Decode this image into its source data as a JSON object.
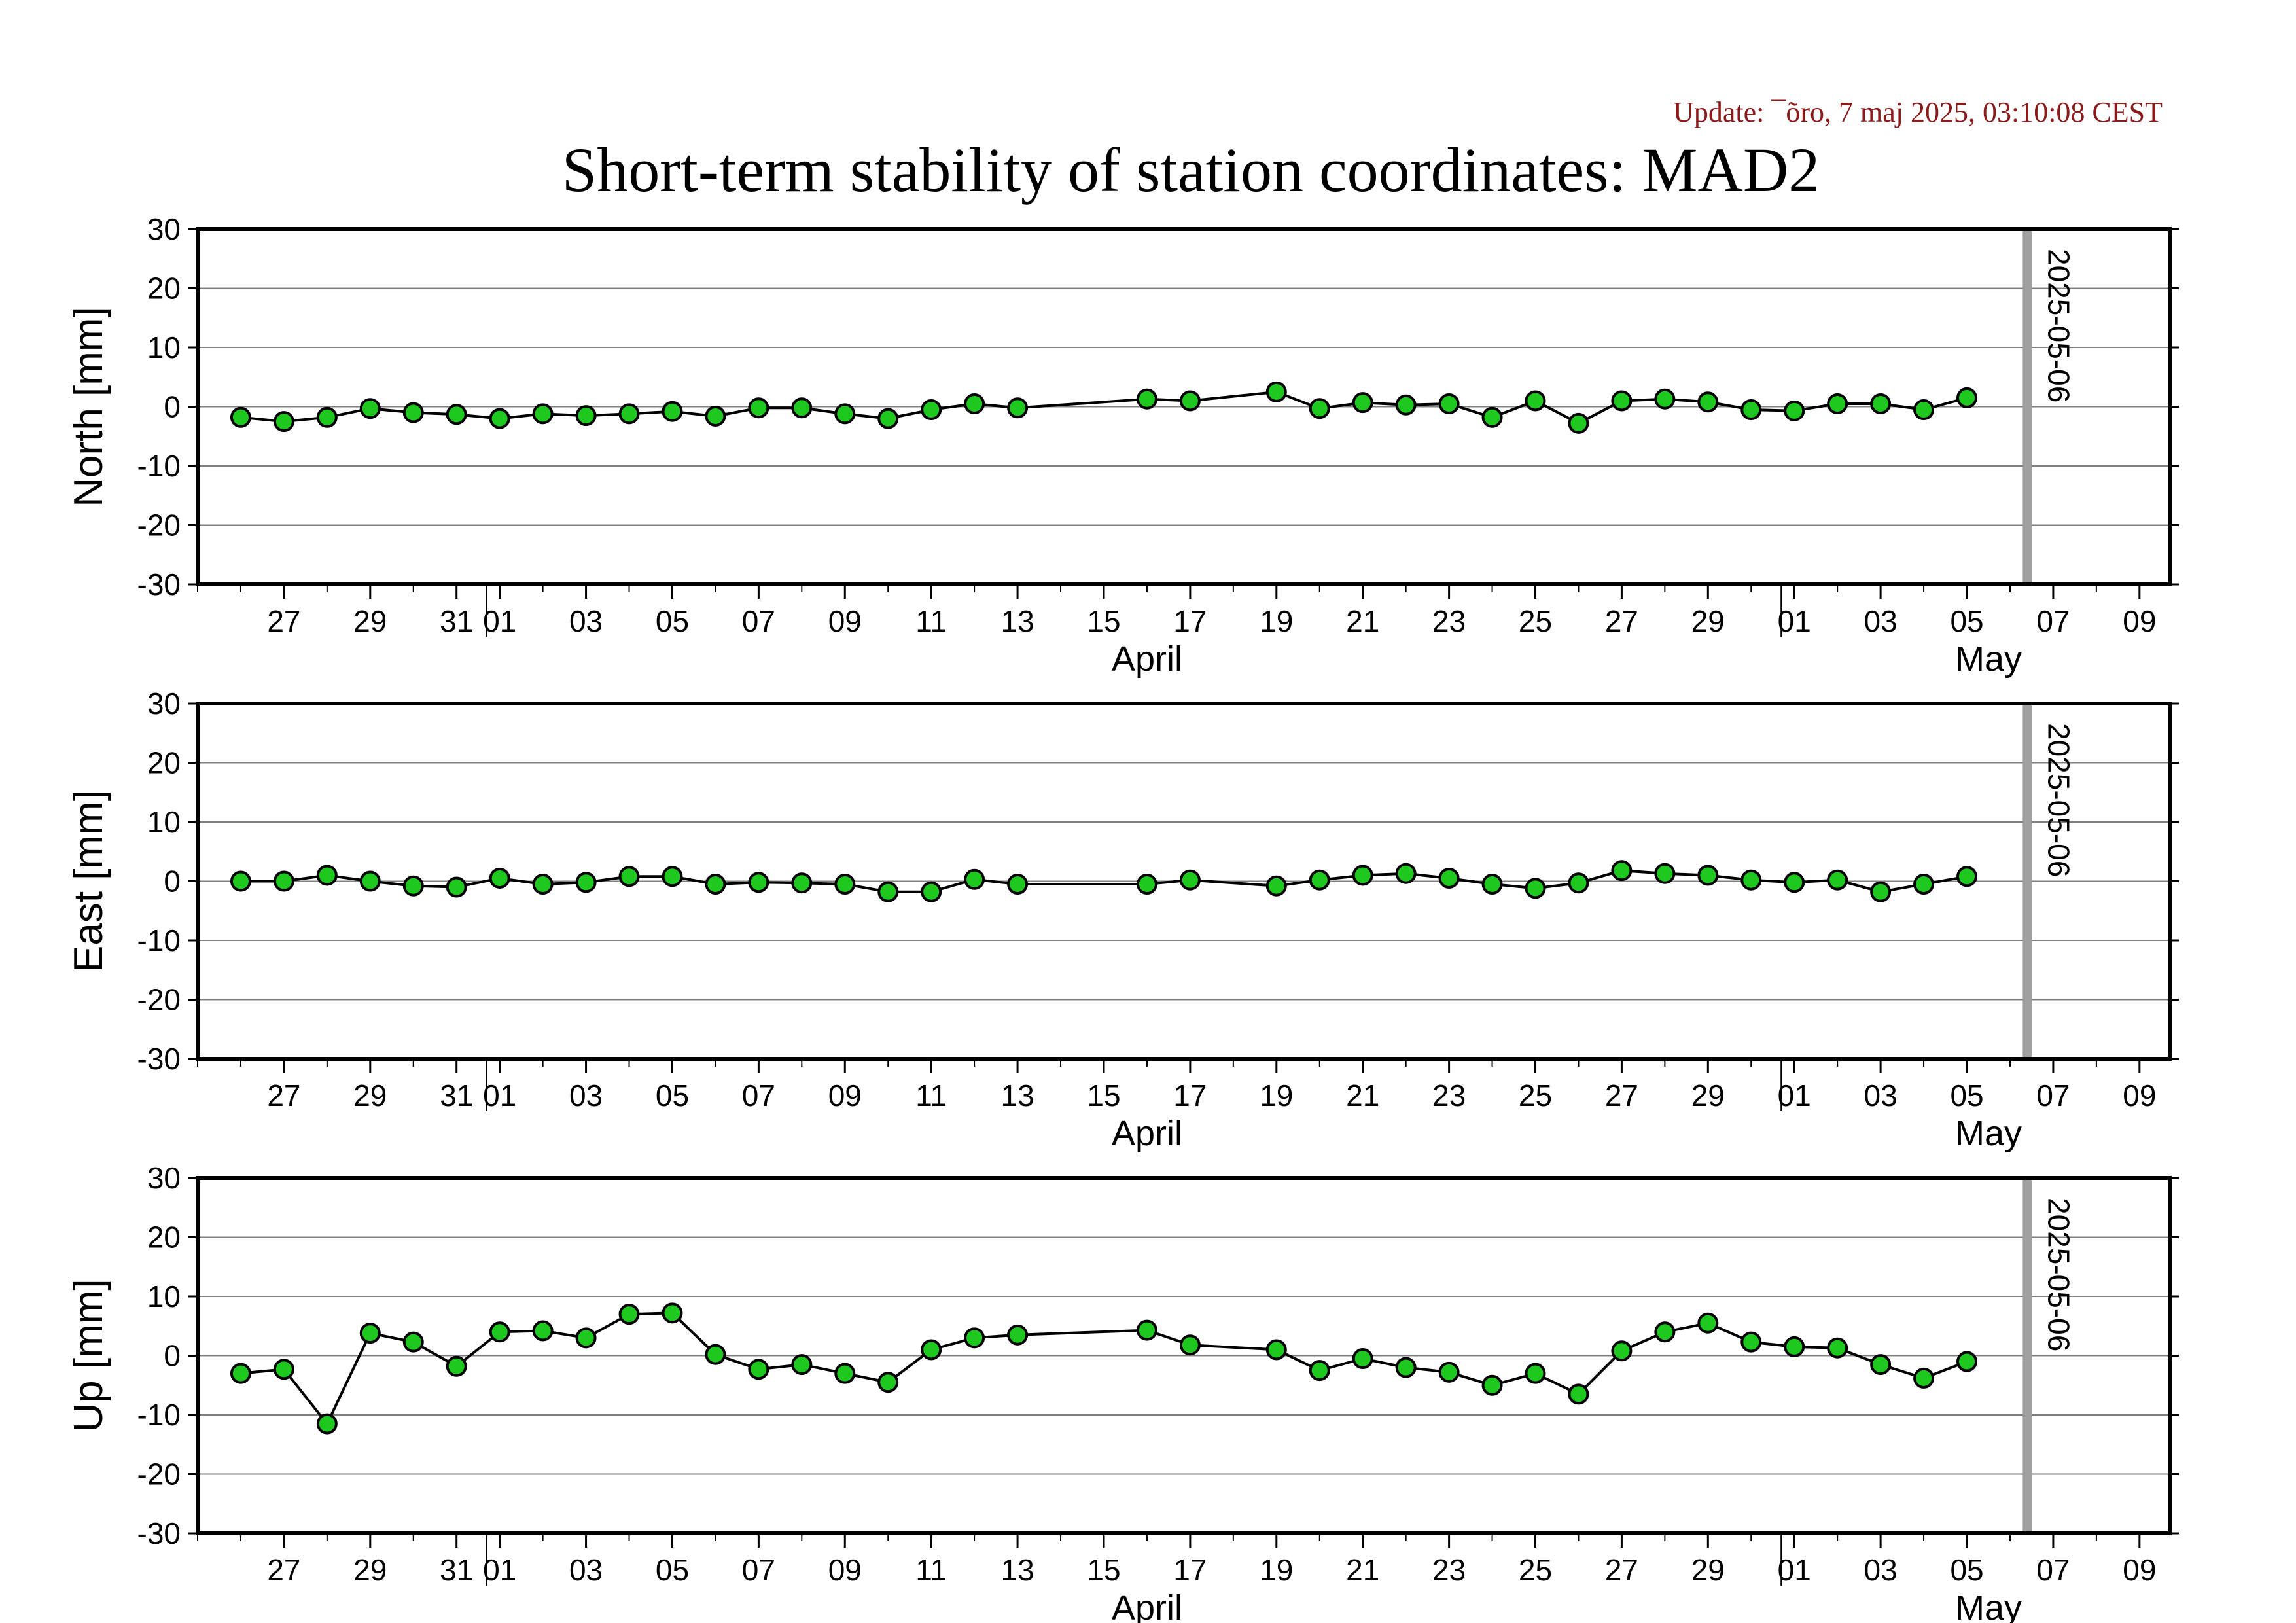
{
  "header": {
    "update": "Update: ¯õro, 7 maj 2025, 03:10:08 CEST",
    "title": "Short-term stability of station coordinates: MAD2"
  },
  "colors": {
    "marker_fill": "#1ec81e",
    "marker_edge": "#000000",
    "grid": "#808080",
    "date_marker": "#a0a0a0"
  },
  "chart_data": [
    {
      "type": "line",
      "ylabel": "North [mm]",
      "ylim": [
        -30,
        30
      ],
      "yticks": [
        30,
        20,
        10,
        0,
        -10,
        -20,
        -30
      ],
      "x_start": "2025-03-25",
      "xlim_days": [
        0,
        45.7
      ],
      "xtick_labels": [
        {
          "d": 2,
          "t": "27"
        },
        {
          "d": 4,
          "t": "29"
        },
        {
          "d": 6,
          "t": "31"
        },
        {
          "d": 7,
          "t": "01"
        },
        {
          "d": 9,
          "t": "03"
        },
        {
          "d": 11,
          "t": "05"
        },
        {
          "d": 13,
          "t": "07"
        },
        {
          "d": 15,
          "t": "09"
        },
        {
          "d": 17,
          "t": "11"
        },
        {
          "d": 19,
          "t": "13"
        },
        {
          "d": 21,
          "t": "15"
        },
        {
          "d": 23,
          "t": "17"
        },
        {
          "d": 25,
          "t": "19"
        },
        {
          "d": 27,
          "t": "21"
        },
        {
          "d": 29,
          "t": "23"
        },
        {
          "d": 31,
          "t": "25"
        },
        {
          "d": 33,
          "t": "27"
        },
        {
          "d": 35,
          "t": "29"
        },
        {
          "d": 37,
          "t": "01"
        },
        {
          "d": 39,
          "t": "03"
        },
        {
          "d": 41,
          "t": "05"
        },
        {
          "d": 43,
          "t": "07"
        },
        {
          "d": 45,
          "t": "09"
        }
      ],
      "months": [
        {
          "d": 22,
          "t": "April"
        },
        {
          "d": 41.5,
          "t": "May"
        }
      ],
      "month_bounds": [
        7,
        37
      ],
      "date_marker": {
        "d": 42.4,
        "label": "2025-05-06"
      },
      "points": [
        [
          1,
          -1.8
        ],
        [
          2,
          -2.5
        ],
        [
          3,
          -1.8
        ],
        [
          4,
          -0.3
        ],
        [
          5,
          -1.0
        ],
        [
          6,
          -1.3
        ],
        [
          7,
          -2.0
        ],
        [
          8,
          -1.2
        ],
        [
          9,
          -1.5
        ],
        [
          10,
          -1.2
        ],
        [
          11,
          -0.8
        ],
        [
          12,
          -1.6
        ],
        [
          13,
          -0.2
        ],
        [
          14,
          -0.2
        ],
        [
          15,
          -1.2
        ],
        [
          16,
          -2.0
        ],
        [
          17,
          -0.5
        ],
        [
          18,
          0.5
        ],
        [
          19,
          -0.2
        ],
        [
          22,
          1.3
        ],
        [
          23,
          1.0
        ],
        [
          25,
          2.5
        ],
        [
          26,
          -0.3
        ],
        [
          27,
          0.7
        ],
        [
          28,
          0.3
        ],
        [
          29,
          0.5
        ],
        [
          30,
          -1.8
        ],
        [
          31,
          1.0
        ],
        [
          32,
          -2.8
        ],
        [
          33,
          1.0
        ],
        [
          34,
          1.3
        ],
        [
          35,
          0.8
        ],
        [
          36,
          -0.5
        ],
        [
          37,
          -0.7
        ],
        [
          38,
          0.5
        ],
        [
          39,
          0.5
        ],
        [
          40,
          -0.5
        ],
        [
          41,
          1.5
        ]
      ]
    },
    {
      "type": "line",
      "ylabel": "East [mm]",
      "ylim": [
        -30,
        30
      ],
      "yticks": [
        30,
        20,
        10,
        0,
        -10,
        -20,
        -30
      ],
      "x_start": "2025-03-25",
      "xlim_days": [
        0,
        45.7
      ],
      "xtick_labels": [
        {
          "d": 2,
          "t": "27"
        },
        {
          "d": 4,
          "t": "29"
        },
        {
          "d": 6,
          "t": "31"
        },
        {
          "d": 7,
          "t": "01"
        },
        {
          "d": 9,
          "t": "03"
        },
        {
          "d": 11,
          "t": "05"
        },
        {
          "d": 13,
          "t": "07"
        },
        {
          "d": 15,
          "t": "09"
        },
        {
          "d": 17,
          "t": "11"
        },
        {
          "d": 19,
          "t": "13"
        },
        {
          "d": 21,
          "t": "15"
        },
        {
          "d": 23,
          "t": "17"
        },
        {
          "d": 25,
          "t": "19"
        },
        {
          "d": 27,
          "t": "21"
        },
        {
          "d": 29,
          "t": "23"
        },
        {
          "d": 31,
          "t": "25"
        },
        {
          "d": 33,
          "t": "27"
        },
        {
          "d": 35,
          "t": "29"
        },
        {
          "d": 37,
          "t": "01"
        },
        {
          "d": 39,
          "t": "03"
        },
        {
          "d": 41,
          "t": "05"
        },
        {
          "d": 43,
          "t": "07"
        },
        {
          "d": 45,
          "t": "09"
        }
      ],
      "months": [
        {
          "d": 22,
          "t": "April"
        },
        {
          "d": 41.5,
          "t": "May"
        }
      ],
      "month_bounds": [
        7,
        37
      ],
      "date_marker": {
        "d": 42.4,
        "label": "2025-05-06"
      },
      "points": [
        [
          1,
          0.0
        ],
        [
          2,
          0.0
        ],
        [
          3,
          1.0
        ],
        [
          4,
          0.0
        ],
        [
          5,
          -0.8
        ],
        [
          6,
          -1.0
        ],
        [
          7,
          0.5
        ],
        [
          8,
          -0.5
        ],
        [
          9,
          -0.2
        ],
        [
          10,
          0.8
        ],
        [
          11,
          0.8
        ],
        [
          12,
          -0.5
        ],
        [
          13,
          -0.2
        ],
        [
          14,
          -0.3
        ],
        [
          15,
          -0.5
        ],
        [
          16,
          -1.8
        ],
        [
          17,
          -1.8
        ],
        [
          18,
          0.3
        ],
        [
          19,
          -0.5
        ],
        [
          22,
          -0.5
        ],
        [
          23,
          0.2
        ],
        [
          25,
          -0.8
        ],
        [
          26,
          0.2
        ],
        [
          27,
          1.0
        ],
        [
          28,
          1.3
        ],
        [
          29,
          0.5
        ],
        [
          30,
          -0.5
        ],
        [
          31,
          -1.2
        ],
        [
          32,
          -0.3
        ],
        [
          33,
          1.8
        ],
        [
          34,
          1.3
        ],
        [
          35,
          1.0
        ],
        [
          36,
          0.2
        ],
        [
          37,
          -0.2
        ],
        [
          38,
          0.2
        ],
        [
          39,
          -1.8
        ],
        [
          40,
          -0.5
        ],
        [
          41,
          0.8
        ]
      ]
    },
    {
      "type": "line",
      "ylabel": "Up [mm]",
      "ylim": [
        -30,
        30
      ],
      "yticks": [
        30,
        20,
        10,
        0,
        -10,
        -20,
        -30
      ],
      "x_start": "2025-03-25",
      "xlim_days": [
        0,
        45.7
      ],
      "xtick_labels": [
        {
          "d": 2,
          "t": "27"
        },
        {
          "d": 4,
          "t": "29"
        },
        {
          "d": 6,
          "t": "31"
        },
        {
          "d": 7,
          "t": "01"
        },
        {
          "d": 9,
          "t": "03"
        },
        {
          "d": 11,
          "t": "05"
        },
        {
          "d": 13,
          "t": "07"
        },
        {
          "d": 15,
          "t": "09"
        },
        {
          "d": 17,
          "t": "11"
        },
        {
          "d": 19,
          "t": "13"
        },
        {
          "d": 21,
          "t": "15"
        },
        {
          "d": 23,
          "t": "17"
        },
        {
          "d": 25,
          "t": "19"
        },
        {
          "d": 27,
          "t": "21"
        },
        {
          "d": 29,
          "t": "23"
        },
        {
          "d": 31,
          "t": "25"
        },
        {
          "d": 33,
          "t": "27"
        },
        {
          "d": 35,
          "t": "29"
        },
        {
          "d": 37,
          "t": "01"
        },
        {
          "d": 39,
          "t": "03"
        },
        {
          "d": 41,
          "t": "05"
        },
        {
          "d": 43,
          "t": "07"
        },
        {
          "d": 45,
          "t": "09"
        }
      ],
      "months": [
        {
          "d": 22,
          "t": "April"
        },
        {
          "d": 41.5,
          "t": "May"
        }
      ],
      "month_bounds": [
        7,
        37
      ],
      "date_marker": {
        "d": 42.4,
        "label": "2025-05-06"
      },
      "points": [
        [
          1,
          -3.0
        ],
        [
          2,
          -2.3
        ],
        [
          3,
          -11.5
        ],
        [
          4,
          3.8
        ],
        [
          5,
          2.3
        ],
        [
          6,
          -1.8
        ],
        [
          7,
          4.0
        ],
        [
          8,
          4.2
        ],
        [
          9,
          3.0
        ],
        [
          10,
          7.0
        ],
        [
          11,
          7.2
        ],
        [
          12,
          0.2
        ],
        [
          13,
          -2.3
        ],
        [
          14,
          -1.5
        ],
        [
          15,
          -3.0
        ],
        [
          16,
          -4.5
        ],
        [
          17,
          1.0
        ],
        [
          18,
          3.0
        ],
        [
          19,
          3.5
        ],
        [
          22,
          4.3
        ],
        [
          23,
          1.8
        ],
        [
          25,
          1.0
        ],
        [
          26,
          -2.5
        ],
        [
          27,
          -0.5
        ],
        [
          28,
          -2.0
        ],
        [
          29,
          -2.8
        ],
        [
          30,
          -5.0
        ],
        [
          31,
          -3.0
        ],
        [
          32,
          -6.5
        ],
        [
          33,
          0.8
        ],
        [
          34,
          4.0
        ],
        [
          35,
          5.5
        ],
        [
          36,
          2.3
        ],
        [
          37,
          1.5
        ],
        [
          38,
          1.3
        ],
        [
          39,
          -1.5
        ],
        [
          40,
          -3.8
        ],
        [
          41,
          -1.0
        ]
      ]
    }
  ]
}
